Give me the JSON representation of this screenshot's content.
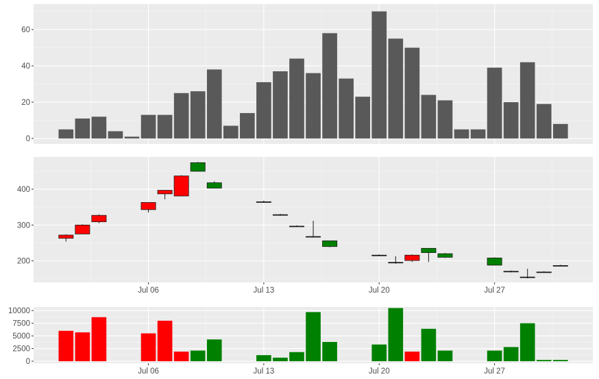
{
  "colors": {
    "panel_bg": "#ebebeb",
    "grid_major": "#ffffff",
    "grid_minor": "#f5f5f5",
    "bar_fill": "#595959",
    "up_fill": "#008000",
    "down_fill": "#ff0000",
    "outline": "#1a1a1a",
    "tick_text": "#4d4d4d"
  },
  "chart_data": [
    {
      "type": "bar",
      "panel": "top",
      "x": [
        "Jul 01",
        "Jul 02",
        "Jul 03",
        "Jul 04",
        "Jul 05",
        "Jul 06",
        "Jul 07",
        "Jul 08",
        "Jul 09",
        "Jul 10",
        "Jul 11",
        "Jul 12",
        "Jul 13",
        "Jul 14",
        "Jul 15",
        "Jul 16",
        "Jul 17",
        "Jul 18",
        "Jul 19",
        "Jul 20",
        "Jul 21",
        "Jul 22",
        "Jul 23",
        "Jul 24",
        "Jul 25",
        "Jul 26",
        "Jul 27",
        "Jul 28",
        "Jul 29",
        "Jul 30",
        "Jul 31"
      ],
      "values": [
        5,
        11,
        12,
        4,
        1,
        13,
        13,
        25,
        26,
        38,
        7,
        14,
        31,
        37,
        44,
        36,
        58,
        33,
        23,
        70,
        55,
        50,
        24,
        21,
        5,
        5,
        39,
        20,
        42,
        19,
        8
      ],
      "ylim": [
        -3,
        74
      ],
      "yticks": [
        0,
        20,
        40,
        60
      ],
      "ytick_labels": [
        "0",
        "20",
        "40",
        "60"
      ],
      "xlabel": "",
      "ylabel": "",
      "grid": true
    },
    {
      "type": "candlestick",
      "panel": "middle",
      "x": [
        "Jul 01",
        "Jul 02",
        "Jul 03",
        "Jul 06",
        "Jul 07",
        "Jul 08",
        "Jul 09",
        "Jul 10",
        "Jul 13",
        "Jul 14",
        "Jul 15",
        "Jul 16",
        "Jul 17",
        "Jul 20",
        "Jul 21",
        "Jul 22",
        "Jul 23",
        "Jul 24",
        "Jul 27",
        "Jul 28",
        "Jul 29",
        "Jul 30",
        "Jul 31"
      ],
      "open": [
        272,
        300,
        327,
        363,
        397,
        437,
        450,
        403,
        365,
        329,
        297,
        268,
        240,
        216,
        196,
        216,
        223,
        210,
        188,
        171,
        155,
        169,
        187
      ],
      "high": [
        274,
        302,
        330,
        364,
        398,
        439,
        476,
        422,
        368,
        331,
        299,
        312,
        256,
        218,
        213,
        218,
        235,
        222,
        210,
        173,
        178,
        171,
        189
      ],
      "low": [
        254,
        275,
        305,
        335,
        372,
        380,
        449,
        403,
        362,
        326,
        295,
        265,
        238,
        213,
        192,
        197,
        197,
        208,
        187,
        168,
        151,
        167,
        185
      ],
      "close": [
        263,
        275,
        309,
        343,
        387,
        381,
        474,
        418,
        365,
        329,
        297,
        268,
        256,
        216,
        196,
        201,
        235,
        220,
        208,
        171,
        155,
        169,
        187
      ],
      "ylim": [
        140,
        490
      ],
      "yticks": [
        200,
        300,
        400
      ],
      "ytick_labels": [
        "200",
        "300",
        "400"
      ],
      "xticks": [
        "Jul 06",
        "Jul 13",
        "Jul 20",
        "Jul 27"
      ],
      "xtick_labels": [
        "Jul 06",
        "Jul 13",
        "Jul 20",
        "Jul 27"
      ],
      "xlabel": "",
      "ylabel": "",
      "grid": true
    },
    {
      "type": "bar",
      "panel": "bottom",
      "x": [
        "Jul 01",
        "Jul 02",
        "Jul 03",
        "Jul 06",
        "Jul 07",
        "Jul 08",
        "Jul 09",
        "Jul 10",
        "Jul 13",
        "Jul 14",
        "Jul 15",
        "Jul 16",
        "Jul 17",
        "Jul 20",
        "Jul 21",
        "Jul 22",
        "Jul 23",
        "Jul 24",
        "Jul 27",
        "Jul 28",
        "Jul 29",
        "Jul 30",
        "Jul 31"
      ],
      "values": [
        6000,
        5700,
        8700,
        5500,
        8000,
        1900,
        2100,
        4300,
        1200,
        700,
        1800,
        9700,
        3800,
        3300,
        10500,
        1900,
        6400,
        2100,
        2100,
        2800,
        7500,
        250,
        250
      ],
      "direction": [
        "down",
        "down",
        "down",
        "down",
        "down",
        "down",
        "up",
        "up",
        "up",
        "up",
        "up",
        "up",
        "up",
        "up",
        "up",
        "down",
        "up",
        "up",
        "up",
        "up",
        "up",
        "up",
        "up"
      ],
      "ylim": [
        -400,
        10700
      ],
      "yticks": [
        0,
        2500,
        5000,
        7500,
        10000
      ],
      "ytick_labels": [
        "0",
        "2500",
        "5000",
        "7500",
        "10000"
      ],
      "xticks": [
        "Jul 06",
        "Jul 13",
        "Jul 20",
        "Jul 27"
      ],
      "xtick_labels": [
        "Jul 06",
        "Jul 13",
        "Jul 20",
        "Jul 27"
      ],
      "xlabel": "",
      "ylabel": "",
      "grid": true
    }
  ]
}
